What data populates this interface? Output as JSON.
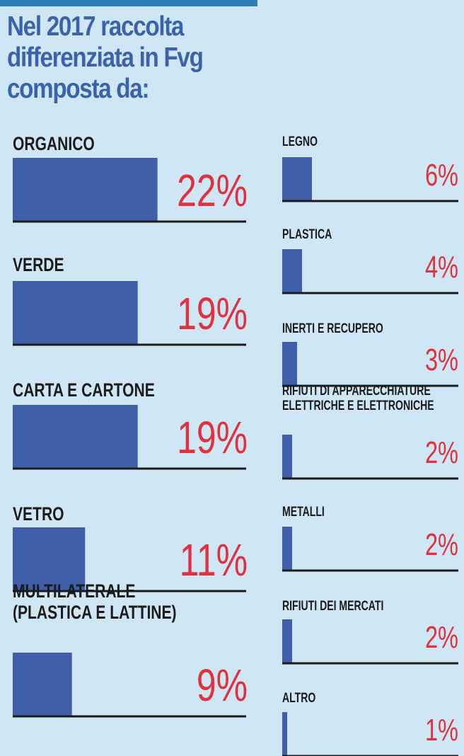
{
  "title": "Nel 2017 raccolta\ndifferenziata in Fvg\ncomposta da:",
  "colors": {
    "bar": "#3f5fa9",
    "value": "#e0313f",
    "title": "#3a63aa",
    "background": "#cfe6f4"
  },
  "chart_data": {
    "type": "bar",
    "title": "Nel 2017 raccolta differenziata in Fvg composta da:",
    "unit": "%",
    "categories": [
      "ORGANICO",
      "VERDE",
      "CARTA E CARTONE",
      "VETRO",
      "MULTILATERALE\n(PLASTICA E LATTINE)",
      "LEGNO",
      "PLASTICA",
      "INERTI E RECUPERO",
      "RIFIUTI DI APPARECCHIATURE\nELETTRICHE E ELETTRONICHE",
      "METALLI",
      "RIFIUTI DEI MERCATI",
      "ALTRO"
    ],
    "values": [
      22,
      19,
      19,
      11,
      9,
      6,
      4,
      3,
      2,
      2,
      2,
      1
    ],
    "value_labels": [
      "22%",
      "19%",
      "19%",
      "11%",
      "9%",
      "6%",
      "4%",
      "3%",
      "2%",
      "2%",
      "2%",
      "1%"
    ]
  }
}
